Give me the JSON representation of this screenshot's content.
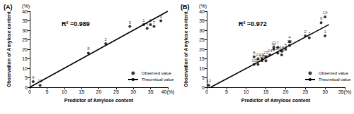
{
  "chart_data": [
    {
      "type": "scatter",
      "title": "(A)",
      "annotation": "R² =0.989",
      "xlabel": "Predictor of Amylose content",
      "ylabel": "Observation of Amylose content",
      "y_unit": "(%)",
      "xlim": [
        0,
        40
      ],
      "xticks": [
        0,
        5,
        10,
        15,
        20,
        25,
        30,
        35,
        {
          "value": 40,
          "label": "40(%)"
        }
      ],
      "ylim": [
        0,
        40
      ],
      "yticks": [
        0,
        5,
        10,
        15,
        20,
        25,
        30,
        35,
        40
      ],
      "grid": false,
      "legend": "lower right",
      "series": [
        {
          "name": "Observed value",
          "type": "scatter",
          "color": "#000000",
          "marker": "circle",
          "x": [
            33,
            22,
            29,
            38,
            34,
            35,
            36,
            17,
            1,
            3
          ],
          "values": [
            33,
            23,
            32,
            35,
            31,
            33,
            32,
            18,
            3,
            1
          ],
          "point_labels": [
            "1",
            "2",
            "3",
            "4",
            "5",
            "6",
            "7",
            "8",
            "9",
            "10"
          ]
        },
        {
          "name": "Theoretical value",
          "type": "line",
          "color": "#000000",
          "line_style": "solid",
          "x": [
            0,
            40
          ],
          "values": [
            0,
            40
          ]
        }
      ]
    },
    {
      "type": "scatter",
      "title": "(B)",
      "annotation": "R² =0.972",
      "xlabel": "Predictor of Amylose content",
      "ylabel": "Observation of Amylose content",
      "y_unit": "(%)",
      "xlim": [
        0,
        35
      ],
      "xticks": [
        0,
        5,
        10,
        15,
        20,
        25,
        30,
        {
          "value": 35,
          "label": "35(%)"
        }
      ],
      "ylim": [
        0,
        40
      ],
      "yticks": [
        0,
        5,
        10,
        15,
        20,
        25,
        30,
        35,
        40
      ],
      "grid": false,
      "legend": "lower right",
      "series": [
        {
          "name": "Observed value",
          "type": "scatter",
          "color": "#000000",
          "marker": "circle",
          "x": [
            30,
            25,
            26,
            21,
            20,
            17,
            18,
            12,
            29,
            30,
            13,
            0.5,
            12,
            19,
            14,
            15,
            18,
            14,
            19,
            21,
            13,
            17,
            15,
            16
          ],
          "values": [
            27,
            27,
            26,
            24,
            20,
            20,
            21,
            16,
            34,
            37,
            12,
            1,
            12,
            19,
            15,
            14,
            18,
            14,
            17,
            22,
            15,
            21,
            16,
            17
          ],
          "point_labels": [
            "1",
            "2",
            "3",
            "4",
            "5",
            "6",
            "7",
            "8",
            "9",
            "10",
            "11",
            "12",
            "13",
            "14",
            "15",
            "16",
            "17",
            "18",
            "19",
            "20",
            "21",
            "22",
            "23",
            "24"
          ]
        },
        {
          "name": "Theoretical value",
          "type": "line",
          "color": "#000000",
          "line_style": "solid",
          "x": [
            1,
            31
          ],
          "values": [
            0,
            33
          ]
        }
      ]
    }
  ]
}
